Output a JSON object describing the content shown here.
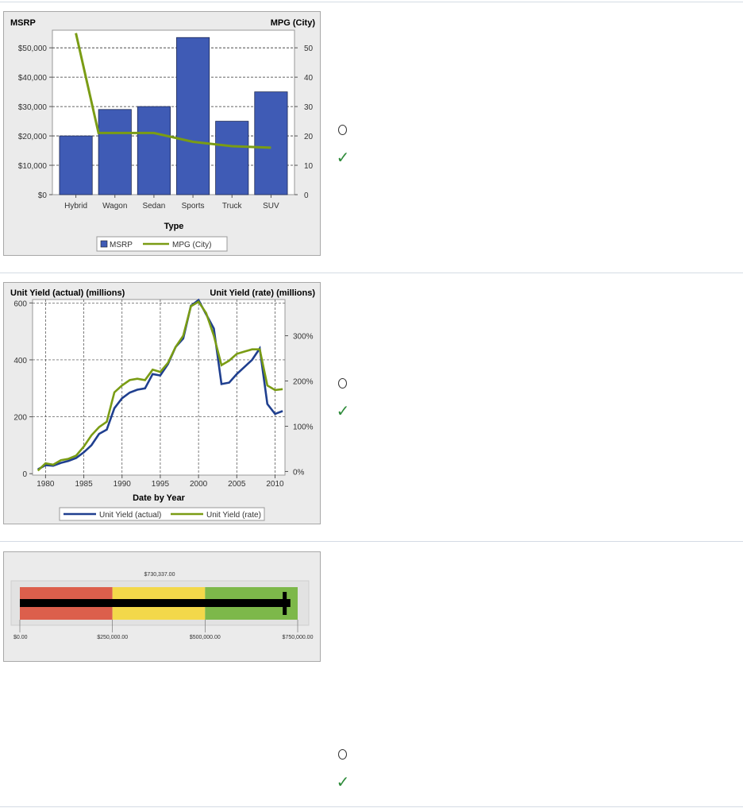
{
  "chart_data": [
    {
      "type": "bar",
      "categories": [
        "Hybrid",
        "Wagon",
        "Sedan",
        "Sports",
        "Truck",
        "SUV"
      ],
      "series": [
        {
          "name": "MSRP",
          "type": "bar",
          "axis": "left",
          "values": [
            20000,
            29000,
            30000,
            53500,
            25000,
            35000
          ],
          "color": "#3f5bb5"
        },
        {
          "name": "MPG (City)",
          "type": "line",
          "axis": "right",
          "values": [
            55,
            21,
            21,
            18,
            16.5,
            16
          ],
          "color": "#7a9c14"
        }
      ],
      "xlabel": "Type",
      "ylabel": "MSRP",
      "y2label": "MPG (City)",
      "ylim": [
        0,
        56000
      ],
      "y2lim": [
        0,
        56
      ],
      "yticks": [
        "$0",
        "$10,000",
        "$20,000",
        "$30,000",
        "$40,000",
        "$50,000"
      ],
      "y2ticks": [
        "0",
        "10",
        "20",
        "30",
        "40",
        "50"
      ],
      "grid": true,
      "legend": "bottom"
    },
    {
      "type": "line",
      "x": [
        1979,
        1980,
        1981,
        1982,
        1983,
        1984,
        1985,
        1986,
        1987,
        1988,
        1989,
        1990,
        1991,
        1992,
        1993,
        1994,
        1995,
        1996,
        1997,
        1998,
        1999,
        2000,
        2001,
        2002,
        2003,
        2004,
        2005,
        2006,
        2007,
        2008,
        2009,
        2010,
        2011
      ],
      "series": [
        {
          "name": "Unit Yield (actual)",
          "axis": "left",
          "color": "#1f3f8f",
          "values": [
            15,
            30,
            28,
            38,
            45,
            55,
            75,
            100,
            140,
            155,
            230,
            265,
            285,
            295,
            300,
            350,
            345,
            385,
            445,
            475,
            590,
            610,
            560,
            510,
            315,
            320,
            350,
            375,
            400,
            440,
            245,
            210,
            220
          ]
        },
        {
          "name": "Unit Yield (rate)",
          "axis": "right",
          "color": "#7a9c14",
          "values": [
            2,
            18,
            15,
            25,
            28,
            35,
            55,
            80,
            98,
            110,
            175,
            190,
            202,
            205,
            202,
            225,
            220,
            240,
            275,
            300,
            365,
            375,
            350,
            300,
            235,
            245,
            260,
            265,
            270,
            270,
            190,
            180,
            182
          ]
        }
      ],
      "xlabel": "Date by Year",
      "ylabel": "Unit Yield (actual) (millions)",
      "y2label": "Unit Yield (rate) (millions)",
      "xlim": [
        1978.3,
        2011.3
      ],
      "ylim": [
        -5,
        612
      ],
      "y2lim": [
        -8,
        380
      ],
      "xticks": [
        "1980",
        "1985",
        "1990",
        "1995",
        "2000",
        "2005",
        "2010"
      ],
      "yticks": [
        "0",
        "200",
        "400",
        "600"
      ],
      "y2ticks": [
        "0%",
        "100%",
        "200%",
        "300%"
      ],
      "grid": true,
      "legend": "bottom"
    },
    {
      "type": "bullet",
      "value": 730337,
      "value_label": "$730,337.00",
      "target": 715000,
      "range": [
        0,
        750000
      ],
      "bands": [
        {
          "from": 0,
          "to": 250000,
          "color": "#dc5f4c"
        },
        {
          "from": 250000,
          "to": 500000,
          "color": "#f3d84a"
        },
        {
          "from": 500000,
          "to": 750000,
          "color": "#7db84a"
        }
      ],
      "ticks": [
        "$0.00",
        "$250,000.00",
        "$500,000.00",
        "$750,000.00"
      ]
    }
  ],
  "status_icons": [
    {
      "radio": "radio-circle",
      "mark": "check-icon",
      "mark_glyph": "✓"
    },
    {
      "radio": "radio-circle",
      "mark": "check-icon",
      "mark_glyph": "✓"
    },
    {
      "radio": "radio-circle",
      "mark": "check-icon",
      "mark_glyph": "✓"
    }
  ]
}
